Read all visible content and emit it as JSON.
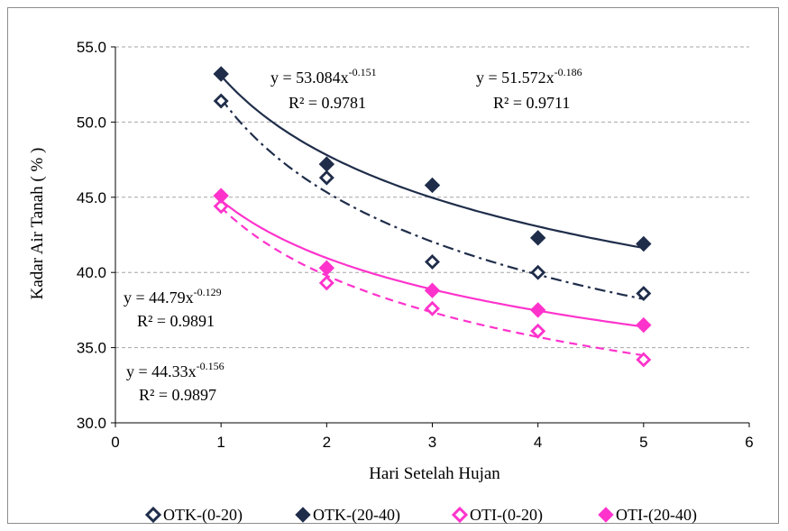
{
  "chart_data": {
    "type": "scatter",
    "xlabel": "Hari Setelah Hujan",
    "ylabel": "Kadar Air Tanah ( % )",
    "xlim": [
      0,
      6
    ],
    "ylim": [
      30,
      55
    ],
    "x_ticks": [
      "0",
      "1",
      "2",
      "3",
      "4",
      "5",
      "6"
    ],
    "y_ticks": [
      "30.0",
      "35.0",
      "40.0",
      "45.0",
      "50.0",
      "55.0"
    ],
    "grid": "horizontal dashed",
    "legend_position": "bottom",
    "series": [
      {
        "name": "OTK-(0-20)",
        "color": "#1f2d4a",
        "marker": "hollow-diamond",
        "x": [
          1,
          2,
          3,
          4,
          5
        ],
        "y": [
          51.4,
          46.3,
          40.7,
          40.0,
          38.6
        ],
        "trend": {
          "a": 51.572,
          "b": -0.186,
          "style": "dash-dot",
          "equation": "y = 51.572x",
          "exponent": "-0.186",
          "r2": "R² = 0.9711"
        }
      },
      {
        "name": "OTK-(20-40)",
        "color": "#1f2d4a",
        "marker": "filled-diamond",
        "x": [
          1,
          2,
          3,
          4,
          5
        ],
        "y": [
          53.2,
          47.2,
          45.8,
          42.3,
          41.9
        ],
        "trend": {
          "a": 53.084,
          "b": -0.151,
          "style": "solid",
          "equation": "y = 53.084x",
          "exponent": "-0.151",
          "r2": "R² = 0.9781"
        }
      },
      {
        "name": "OTI-(0-20)",
        "color": "#ff33cc",
        "marker": "hollow-diamond",
        "x": [
          1,
          2,
          3,
          4,
          5
        ],
        "y": [
          44.4,
          39.3,
          37.6,
          36.1,
          34.2
        ],
        "trend": {
          "a": 44.33,
          "b": -0.156,
          "style": "dashed",
          "equation": "y = 44.33x",
          "exponent": "-0.156",
          "r2": "R² = 0.9897"
        }
      },
      {
        "name": "OTI-(20-40)",
        "color": "#ff33cc",
        "marker": "filled-diamond",
        "x": [
          1,
          2,
          3,
          4,
          5
        ],
        "y": [
          45.1,
          40.3,
          38.8,
          37.5,
          36.5
        ],
        "trend": {
          "a": 44.79,
          "b": -0.129,
          "style": "solid",
          "equation": "y = 44.79x",
          "exponent": "-0.129",
          "r2": "R² = 0.9891"
        }
      }
    ]
  }
}
